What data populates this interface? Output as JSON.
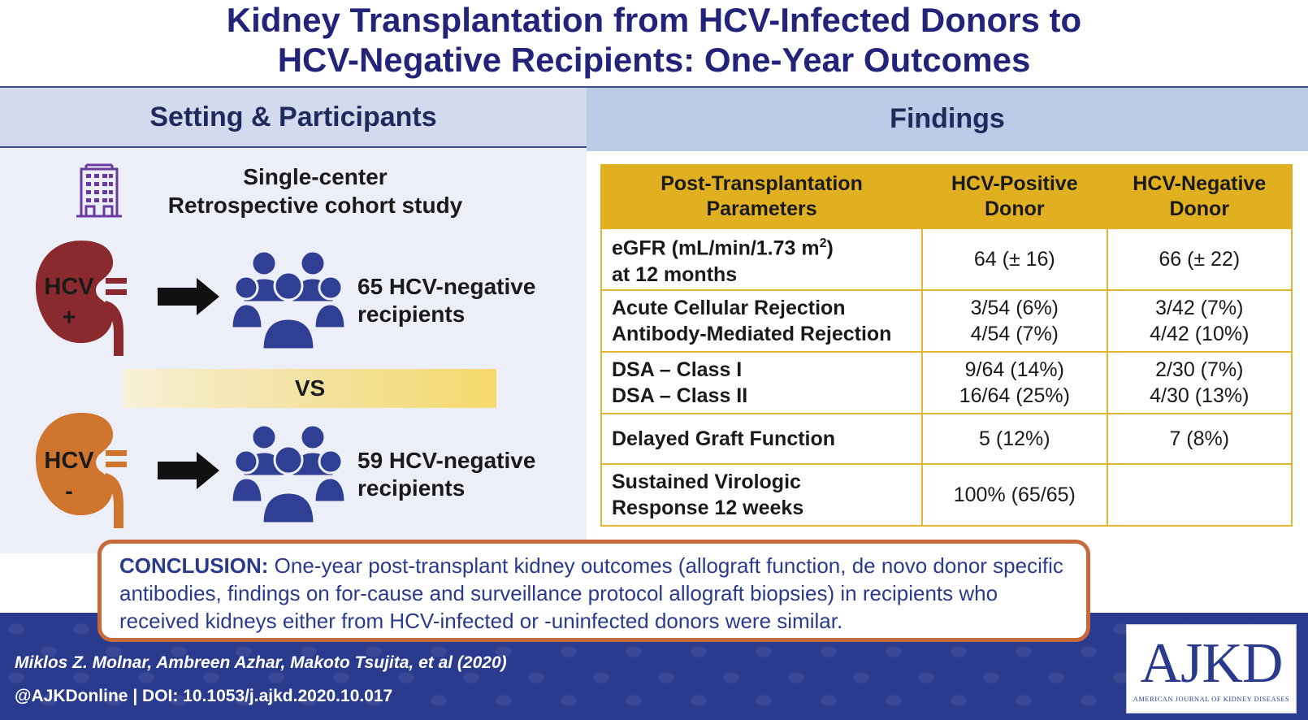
{
  "title": {
    "line1": "Kidney Transplantation from HCV-Infected Donors to",
    "line2": "HCV-Negative Recipients: One-Year Outcomes"
  },
  "left": {
    "heading": "Setting & Participants",
    "study_line1": "Single-center",
    "study_line2": "Retrospective cohort study",
    "positive": {
      "kidney_label_line1": "HCV",
      "kidney_label_line2": "+",
      "recipients_line1": "65 HCV-negative",
      "recipients_line2": "recipients"
    },
    "vs": "VS",
    "negative": {
      "kidney_label_line1": "HCV",
      "kidney_label_line2": "-",
      "recipients_line1": "59 HCV-negative",
      "recipients_line2": "recipients"
    }
  },
  "right": {
    "heading": "Findings",
    "table": {
      "headers": {
        "param_line1": "Post-Transplantation",
        "param_line2": "Parameters",
        "pos_line1": "HCV-Positive",
        "pos_line2": "Donor",
        "neg_line1": "HCV-Negative",
        "neg_line2": "Donor"
      },
      "rows": [
        {
          "param_line1": "eGFR (mL/min/1.73 m",
          "param_sup": "2",
          "param_line1_end": ")",
          "param_line2": "at 12 months",
          "pos": "64 (± 16)",
          "neg": "66 (± 22)"
        },
        {
          "param_line1": "Acute Cellular Rejection",
          "param_line2": "Antibody-Mediated Rejection",
          "pos_line1": "3/54 (6%)",
          "pos_line2": "4/54 (7%)",
          "neg_line1": "3/42 (7%)",
          "neg_line2": "4/42 (10%)"
        },
        {
          "param_line1": "DSA – Class I",
          "param_line2": "DSA – Class II",
          "pos_line1": "9/64 (14%)",
          "pos_line2": "16/64 (25%)",
          "neg_line1": "2/30 (7%)",
          "neg_line2": "4/30 (13%)"
        },
        {
          "param": "Delayed Graft Function",
          "pos": "5 (12%)",
          "neg": "7 (8%)"
        },
        {
          "param_line1": "Sustained Virologic",
          "param_line2": "Response 12 weeks",
          "pos": "100% (65/65)",
          "neg": ""
        }
      ]
    }
  },
  "conclusion": {
    "lead": "CONCLUSION:",
    "text": " One-year post-transplant kidney outcomes (allograft function, de novo donor specific antibodies, findings on for-cause and surveillance protocol allograft biopsies) in recipients who received kidneys either from HCV-infected or -uninfected donors were similar."
  },
  "footer": {
    "authors": "Miklos Z. Molnar, Ambreen Azhar, Makoto Tsujita, et al  (2020)",
    "doi": "@AJKDonline | DOI: 10.1053/j.ajkd.2020.10.017",
    "logo_main": "AJKD",
    "logo_sub": "AMERICAN JOURNAL OF KIDNEY DISEASES"
  },
  "colors": {
    "title": "#23237a",
    "kidney_positive": "#8b2a2e",
    "kidney_negative": "#d0752e",
    "people": "#2f3f93",
    "table_header": "#e1b021",
    "band": "#2a3a8c",
    "conclusion_border": "#c6693b"
  },
  "icons": [
    "building-icon",
    "kidney-icon",
    "arrow-right-icon",
    "people-group-icon"
  ]
}
